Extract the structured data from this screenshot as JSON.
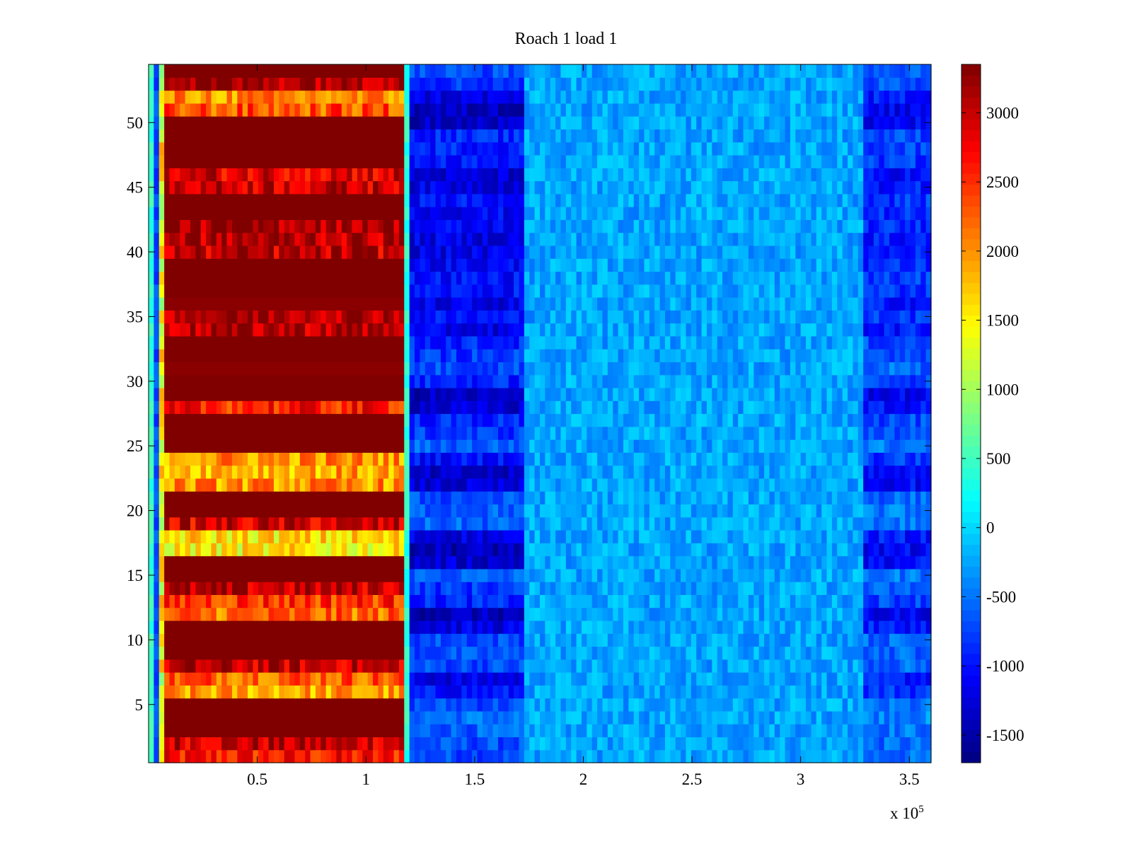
{
  "chart_data": {
    "type": "heatmap",
    "title": "Roach 1 load 1",
    "xlabel": "",
    "ylabel": "",
    "x_multiplier_label": "x 10",
    "x_multiplier_exponent": "5",
    "xlim": [
      0,
      360000
    ],
    "ylim": [
      0.5,
      54.5
    ],
    "x_ticks": [
      50000,
      100000,
      150000,
      200000,
      250000,
      300000,
      350000
    ],
    "x_tick_labels": [
      "0.5",
      "1",
      "1.5",
      "2",
      "2.5",
      "3",
      "3.5"
    ],
    "y_ticks": [
      5,
      10,
      15,
      20,
      25,
      30,
      35,
      40,
      45,
      50
    ],
    "y_tick_labels": [
      "5",
      "10",
      "15",
      "20",
      "25",
      "30",
      "35",
      "40",
      "45",
      "50"
    ],
    "rows": 54,
    "colormap": "jet",
    "clim": [
      -1700,
      3350
    ],
    "colorbar": {
      "ticks": [
        -1500,
        -1000,
        -500,
        0,
        500,
        1000,
        1500,
        2000,
        2500,
        3000
      ],
      "tick_labels": [
        "-1500",
        "-1000",
        "-500",
        "0",
        "500",
        "1000",
        "1500",
        "2000",
        "2500",
        "3000"
      ]
    },
    "grid": false,
    "segments": {
      "hot_start_x": 5000,
      "hot_end_x": 117000,
      "dip_end_x": 172000,
      "right_dip_start_x": 330000
    },
    "row_hot_levels": [
      2600,
      3000,
      3350,
      3350,
      3350,
      1900,
      2300,
      3000,
      3350,
      3350,
      3350,
      2200,
      2500,
      3000,
      3350,
      3350,
      1500,
      1600,
      2900,
      3350,
      3350,
      2000,
      1900,
      2000,
      3350,
      3350,
      3350,
      2600,
      3350,
      3350,
      3300,
      3350,
      3350,
      3100,
      3200,
      3300,
      3350,
      3350,
      3350,
      3000,
      3100,
      3200,
      3350,
      3350,
      3000,
      2900,
      3350,
      3350,
      3350,
      3350,
      2300,
      2000,
      3200,
      3350
    ],
    "row_dip_levels": [
      -700,
      -700,
      -600,
      -500,
      -700,
      -1000,
      -1200,
      -700,
      -700,
      -700,
      -1200,
      -1400,
      -900,
      -800,
      -600,
      -1300,
      -1400,
      -1200,
      -600,
      -600,
      -700,
      -1300,
      -1400,
      -1000,
      -600,
      -800,
      -900,
      -1300,
      -1400,
      -900,
      -700,
      -800,
      -900,
      -1200,
      -1000,
      -1200,
      -1000,
      -1000,
      -1100,
      -1200,
      -1200,
      -1100,
      -1100,
      -1000,
      -1200,
      -1300,
      -1000,
      -900,
      -900,
      -1400,
      -1400,
      -1200,
      -800,
      -700
    ]
  }
}
